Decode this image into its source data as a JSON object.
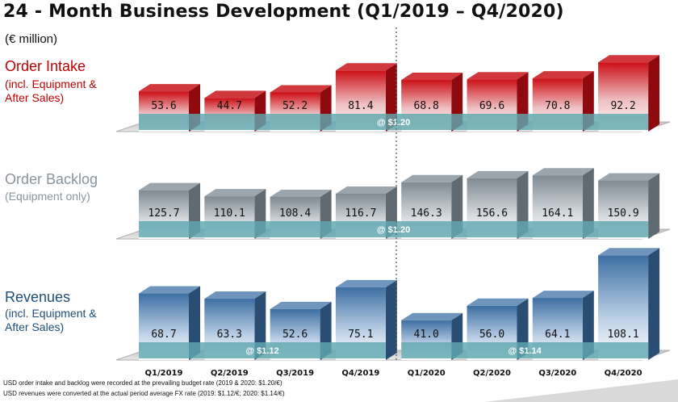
{
  "title": "24 - Month Business Development (Q1/2019 – Q4/2020)",
  "unit": "(€ million)",
  "colors": {
    "order_intake": "#c00000",
    "order_backlog": "#7f8a93",
    "revenues": "#3d6fa3",
    "fx_band": "#5fa7b0"
  },
  "chart_data": [
    {
      "type": "bar",
      "title": "Order Intake",
      "subtitle": "(incl. Equipment & After Sales)",
      "categories": [
        "Q1/2019",
        "Q2/2019",
        "Q3/2019",
        "Q4/2019",
        "Q1/2020",
        "Q2/2020",
        "Q3/2020",
        "Q4/2020"
      ],
      "values": [
        53.6,
        44.7,
        52.2,
        81.4,
        68.8,
        69.6,
        70.8,
        92.2
      ],
      "labels": [
        "53.6",
        "44.7",
        "52.2",
        "81.4",
        "68.8",
        "69.6",
        "70.8",
        "92.2"
      ],
      "fx_bands": [
        {
          "label": "@ $1.20",
          "from": 0,
          "to": 7
        }
      ]
    },
    {
      "type": "bar",
      "title": "Order Backlog",
      "subtitle": "(Equipment only)",
      "categories": [
        "Q1/2019",
        "Q2/2019",
        "Q3/2019",
        "Q4/2019",
        "Q1/2020",
        "Q2/2020",
        "Q3/2020",
        "Q4/2020"
      ],
      "values": [
        125.7,
        110.1,
        108.4,
        116.7,
        146.3,
        156.6,
        164.1,
        150.9
      ],
      "labels": [
        "125.7",
        "110.1",
        "108.4",
        "116.7",
        "146.3",
        "156.6",
        "164.1",
        "150.9"
      ],
      "fx_bands": [
        {
          "label": "@ $1.20",
          "from": 0,
          "to": 7
        }
      ]
    },
    {
      "type": "bar",
      "title": "Revenues",
      "subtitle": "(incl. Equipment & After Sales)",
      "categories": [
        "Q1/2019",
        "Q2/2019",
        "Q3/2019",
        "Q4/2019",
        "Q1/2020",
        "Q2/2020",
        "Q3/2020",
        "Q4/2020"
      ],
      "values": [
        68.7,
        63.3,
        52.6,
        75.1,
        41.0,
        56.0,
        64.1,
        108.1
      ],
      "labels": [
        "68.7",
        "63.3",
        "52.6",
        "75.1",
        "41.0",
        "56.0",
        "64.1",
        "108.1"
      ],
      "fx_bands": [
        {
          "label": "@ $1.12",
          "from": 0,
          "to": 3
        },
        {
          "label": "@ $1.14",
          "from": 4,
          "to": 7
        }
      ]
    }
  ],
  "footnotes": [
    "USD order intake and backlog were recorded at the prevailing budget rate (2019 & 2020: $1.20/€)",
    "USD revenues were converted at the actual period average FX rate (2019: $1.12/€; 2020: $1.14/€)"
  ]
}
